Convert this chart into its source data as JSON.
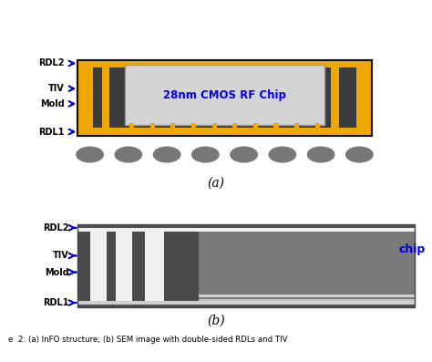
{
  "fig_width": 4.74,
  "fig_height": 3.97,
  "bg_color": "#ffffff",
  "panel_a_label": "(a)",
  "panel_b_label": "(b)",
  "caption": "e  2: (a) InFO structure; (b) SEM image with double-sided RDLs and TIV",
  "chip_text": "28nm CMOS RF Chip",
  "chip_text_color": "#0000ee",
  "chip_bg_color": "#d4d4d4",
  "gold_color": "#f0a800",
  "dark_gray": "#3c3c3c",
  "mid_gray": "#606060",
  "ball_color": "#777777",
  "arrow_color": "#0000dd",
  "label_color": "#000000",
  "labels_a": [
    "RDL2",
    "TIV",
    "Mold",
    "RDL1"
  ],
  "labels_b": [
    "RDL2",
    "TIV",
    "Mold",
    "RDL1"
  ],
  "chip_label_b": "chip",
  "chip_label_color_b": "#0000dd",
  "sem_dark": "#606060",
  "sem_mid": "#888888",
  "sem_light": "#d0d0d0",
  "sem_white": "#f0f0f0",
  "sem_tiv_bright": "#e8e8e8"
}
